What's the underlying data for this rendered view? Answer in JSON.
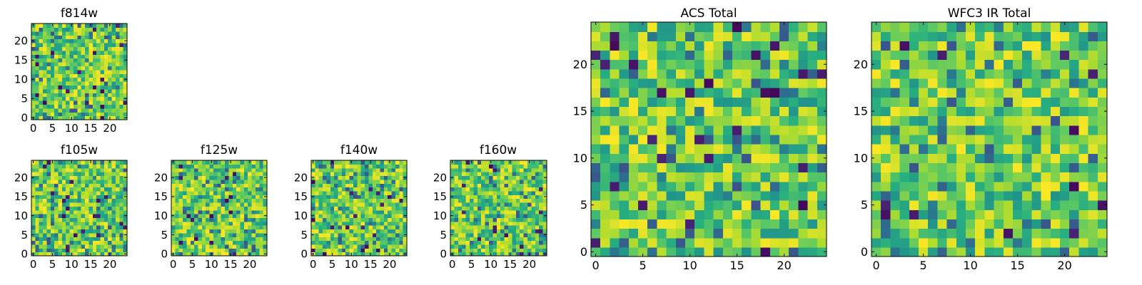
{
  "chart_data": [
    {
      "type": "heatmap",
      "title": "f814w",
      "grid": [
        25,
        25
      ],
      "xticks": [
        0,
        5,
        10,
        15,
        20
      ],
      "yticks": [
        0,
        5,
        10,
        15,
        20
      ],
      "colormap": "viridis",
      "seed": 11,
      "hot": 0.035
    },
    {
      "type": "heatmap",
      "title": "f105w",
      "grid": [
        25,
        25
      ],
      "xticks": [
        0,
        5,
        10,
        15,
        20
      ],
      "yticks": [
        0,
        5,
        10,
        15,
        20
      ],
      "colormap": "viridis",
      "seed": 23,
      "hot": 0.03
    },
    {
      "type": "heatmap",
      "title": "f125w",
      "grid": [
        25,
        25
      ],
      "xticks": [
        0,
        5,
        10,
        15,
        20
      ],
      "yticks": [
        0,
        5,
        10,
        15,
        20
      ],
      "colormap": "viridis",
      "seed": 37,
      "hot": 0.03
    },
    {
      "type": "heatmap",
      "title": "f140w",
      "grid": [
        25,
        25
      ],
      "xticks": [
        0,
        5,
        10,
        15,
        20
      ],
      "yticks": [
        0,
        5,
        10,
        15,
        20
      ],
      "colormap": "viridis",
      "seed": 41,
      "hot": 0.035
    },
    {
      "type": "heatmap",
      "title": "f160w",
      "grid": [
        25,
        25
      ],
      "xticks": [
        0,
        5,
        10,
        15,
        20
      ],
      "yticks": [
        0,
        5,
        10,
        15,
        20
      ],
      "colormap": "viridis",
      "seed": 53,
      "hot": 0.025
    },
    {
      "type": "heatmap",
      "title": "ACS Total",
      "grid": [
        25,
        25
      ],
      "xticks": [
        0,
        5,
        10,
        15,
        20
      ],
      "yticks": [
        0,
        5,
        10,
        15,
        20
      ],
      "colormap": "viridis",
      "seed": 67,
      "hot": 0.035
    },
    {
      "type": "heatmap",
      "title": "WFC3 IR Total",
      "grid": [
        25,
        25
      ],
      "xticks": [
        0,
        5,
        10,
        15,
        20
      ],
      "yticks": [
        0,
        5,
        10,
        15,
        20
      ],
      "colormap": "viridis",
      "seed": 79,
      "hot": 0.025
    }
  ],
  "colors": {
    "frame": "#000000",
    "background": "#ffffff"
  }
}
